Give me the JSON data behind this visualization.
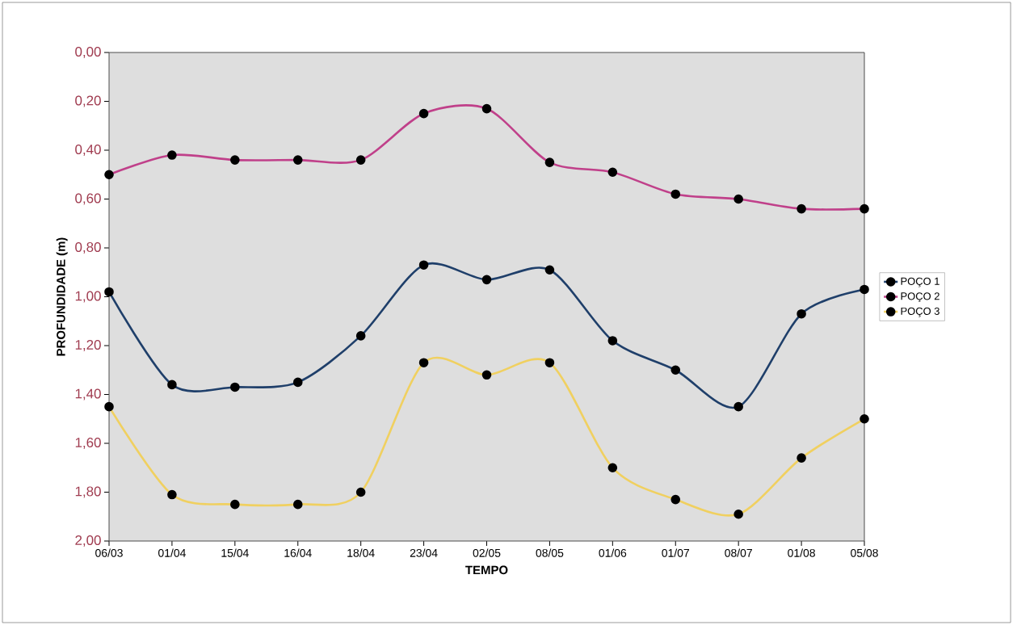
{
  "chart_data": {
    "type": "line",
    "xlabel": "TEMPO",
    "ylabel": "PROFUNDIDADE (m)",
    "categories": [
      "06/03",
      "01/04",
      "15/04",
      "16/04",
      "18/04",
      "23/04",
      "02/05",
      "08/05",
      "01/06",
      "01/07",
      "08/07",
      "01/08",
      "05/08"
    ],
    "series": [
      {
        "name": "POÇO 1",
        "color": "#1f3f6a",
        "values": [
          0.98,
          1.36,
          1.37,
          1.35,
          1.16,
          0.87,
          0.93,
          0.89,
          1.18,
          1.3,
          1.45,
          1.07,
          0.97
        ]
      },
      {
        "name": "POÇO 2",
        "color": "#c0408a",
        "values": [
          0.5,
          0.42,
          0.44,
          0.44,
          0.44,
          0.25,
          0.23,
          0.45,
          0.49,
          0.58,
          0.6,
          0.64,
          0.64
        ]
      },
      {
        "name": "POÇO 3",
        "color": "#f0d060",
        "values": [
          1.45,
          1.81,
          1.85,
          1.85,
          1.8,
          1.27,
          1.32,
          1.27,
          1.7,
          1.83,
          1.89,
          1.66,
          1.5
        ]
      }
    ],
    "ylim": [
      2.0,
      0.0
    ],
    "yticks": [
      {
        "value": 0.0,
        "label": "0,00"
      },
      {
        "value": 0.2,
        "label": "0,20"
      },
      {
        "value": 0.4,
        "label": "0,40"
      },
      {
        "value": 0.6,
        "label": "0,60"
      },
      {
        "value": 0.8,
        "label": "0,80"
      },
      {
        "value": 1.0,
        "label": "1,00"
      },
      {
        "value": 1.2,
        "label": "1,20"
      },
      {
        "value": 1.4,
        "label": "1,40"
      },
      {
        "value": 1.6,
        "label": "1,60"
      },
      {
        "value": 1.8,
        "label": "1,80"
      },
      {
        "value": 2.0,
        "label": "2,00"
      }
    ],
    "grid": false,
    "legend": "right",
    "marker": "circle",
    "line_style": "solid"
  }
}
